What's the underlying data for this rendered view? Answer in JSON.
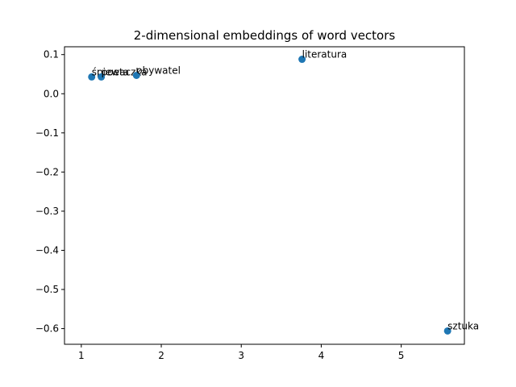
{
  "chart_data": {
    "type": "scatter",
    "title": "2-dimensional embeddings of word vectors",
    "xlabel": "",
    "ylabel": "",
    "xlim": [
      0.79,
      5.79
    ],
    "ylim": [
      -0.64,
      0.12
    ],
    "x_ticks": [
      1,
      2,
      3,
      4,
      5
    ],
    "y_ticks": [
      0.1,
      0.0,
      -0.1,
      -0.2,
      -0.3,
      -0.4,
      -0.5,
      -0.6
    ],
    "x_tick_labels": [
      "1",
      "2",
      "3",
      "4",
      "5"
    ],
    "y_tick_labels": [
      "0.1",
      "0.0",
      "−0.1",
      "−0.2",
      "−0.3",
      "−0.4",
      "−0.5",
      "−0.6"
    ],
    "grid": false,
    "marker_color": "#1f77b4",
    "points": [
      {
        "label": "śpiewaczka",
        "x": 1.13,
        "y": 0.043
      },
      {
        "label": "poeta",
        "x": 1.25,
        "y": 0.043
      },
      {
        "label": "obywatel",
        "x": 1.69,
        "y": 0.047
      },
      {
        "label": "literatura",
        "x": 3.76,
        "y": 0.088
      },
      {
        "label": "sztuka",
        "x": 5.58,
        "y": -0.606
      }
    ]
  }
}
